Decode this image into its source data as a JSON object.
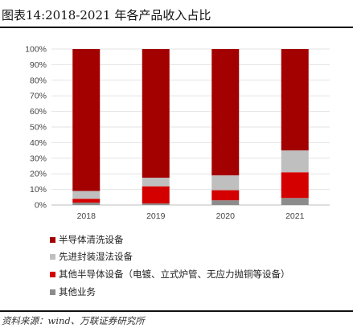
{
  "title": "图表14:2018-2021 年各产品收入占比",
  "source": "资料来源：wind、万联证券研究所",
  "chart_data": {
    "type": "bar",
    "stacked": true,
    "categories": [
      "2018",
      "2019",
      "2020",
      "2021"
    ],
    "ylim": [
      0,
      100
    ],
    "y_ticks": [
      "0%",
      "10%",
      "20%",
      "30%",
      "40%",
      "50%",
      "60%",
      "70%",
      "80%",
      "90%",
      "100%"
    ],
    "grid": true,
    "legend_position": "bottom",
    "series": [
      {
        "name": "其他业务",
        "color": "#8c8c8c",
        "values": [
          1.5,
          1.0,
          3.0,
          4.5
        ]
      },
      {
        "name": "其他半导体设备（电镀、立式炉管、无应力抛铜等设备）",
        "color": "#d40000",
        "values": [
          2.5,
          11.0,
          6.5,
          16.5
        ]
      },
      {
        "name": "先进封装湿法设备",
        "color": "#bfbfbf",
        "values": [
          5.0,
          5.5,
          9.5,
          14.0
        ]
      },
      {
        "name": "半导体清洗设备",
        "color": "#a30000",
        "values": [
          91.0,
          82.5,
          81.0,
          65.0
        ]
      }
    ]
  },
  "legend": [
    {
      "label": "半导体清洗设备",
      "color": "#a30000"
    },
    {
      "label": "先进封装湿法设备",
      "color": "#bfbfbf"
    },
    {
      "label": "其他半导体设备（电镀、立式炉管、无应力抛铜等设备）",
      "color": "#d40000"
    },
    {
      "label": "其他业务",
      "color": "#8c8c8c"
    }
  ]
}
